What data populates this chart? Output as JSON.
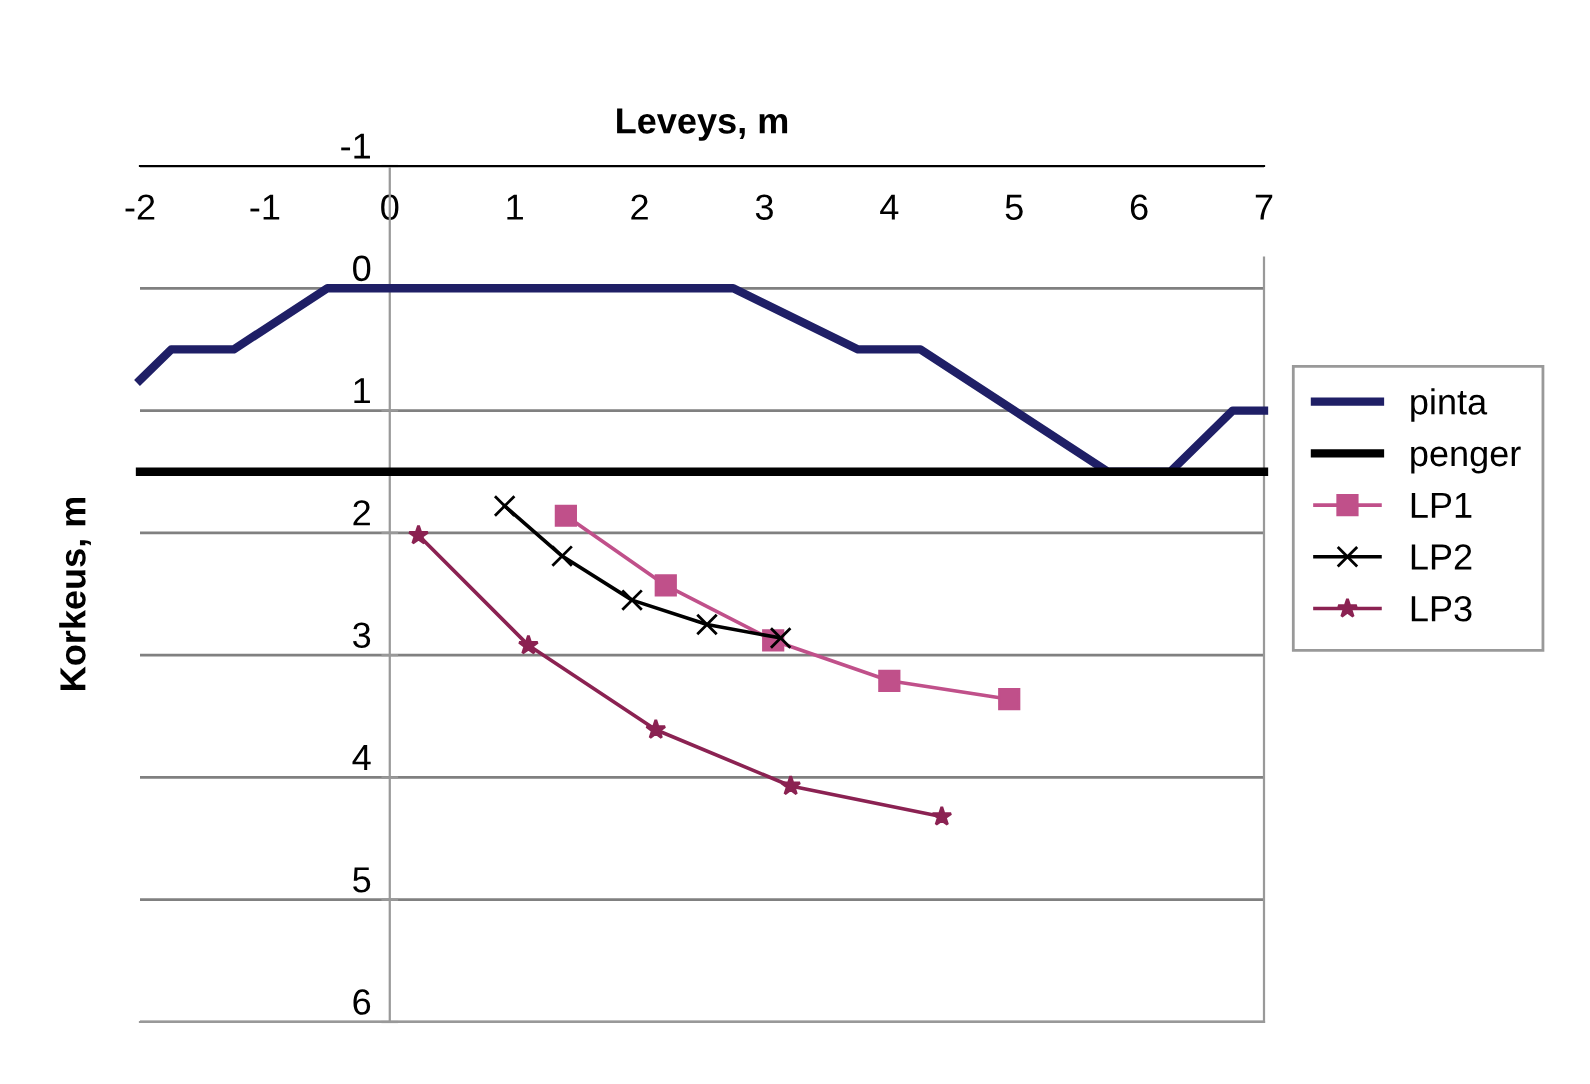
{
  "chart_data": {
    "type": "line",
    "title": "Leveys, m",
    "ylabel": "Korkeus, m",
    "xlim": [
      -2,
      7
    ],
    "xticks": [
      -2,
      -1,
      0,
      1,
      2,
      3,
      4,
      5,
      6,
      7
    ],
    "ylim": [
      6,
      -1
    ],
    "yticks": [
      -1,
      0,
      1,
      2,
      3,
      4,
      5,
      6
    ],
    "grid": "y",
    "legend": "right",
    "series": [
      {
        "name": "pinta",
        "color": "#1f1f66",
        "marker": "none",
        "x": [
          -2,
          -1.75,
          -1.25,
          -0.5,
          2.75,
          3.75,
          4.25,
          5.75,
          6.25,
          6.75,
          7
        ],
        "values": [
          0.75,
          0.5,
          0.5,
          0,
          0,
          0.5,
          0.5,
          1.5,
          1.5,
          1,
          1
        ]
      },
      {
        "name": "penger",
        "color": "#000000",
        "marker": "none",
        "x": [
          -2,
          7
        ],
        "values": [
          1.5,
          1.5
        ]
      },
      {
        "name": "LP1",
        "color": "#c0508a",
        "marker": "square",
        "x": [
          1.41,
          2.21,
          3.07,
          4.0,
          4.96
        ],
        "values": [
          1.86,
          2.43,
          2.88,
          3.21,
          3.36
        ]
      },
      {
        "name": "LP2",
        "color": "#000000",
        "marker": "cross",
        "x": [
          0.92,
          1.38,
          1.94,
          2.54,
          3.13
        ],
        "values": [
          1.78,
          2.19,
          2.55,
          2.75,
          2.86
        ]
      },
      {
        "name": "LP3",
        "color": "#8b2252",
        "marker": "star",
        "x": [
          0.23,
          1.11,
          2.13,
          3.21,
          4.42
        ],
        "values": [
          2.02,
          2.92,
          3.61,
          4.07,
          4.32
        ]
      }
    ]
  }
}
